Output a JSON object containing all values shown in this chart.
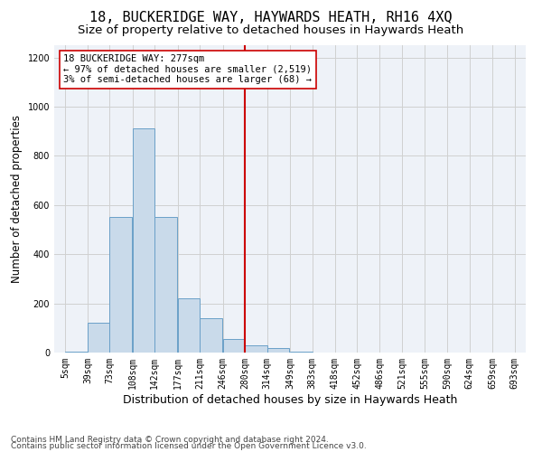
{
  "title": "18, BUCKERIDGE WAY, HAYWARDS HEATH, RH16 4XQ",
  "subtitle": "Size of property relative to detached houses in Haywards Heath",
  "xlabel": "Distribution of detached houses by size in Haywards Heath",
  "ylabel": "Number of detached properties",
  "footer1": "Contains HM Land Registry data © Crown copyright and database right 2024.",
  "footer2": "Contains public sector information licensed under the Open Government Licence v3.0.",
  "bin_edges": [
    5,
    39,
    73,
    108,
    142,
    177,
    211,
    246,
    280,
    314,
    349,
    383,
    418,
    452,
    486,
    521,
    555,
    590,
    624,
    659,
    693
  ],
  "bar_heights": [
    5,
    120,
    550,
    910,
    550,
    220,
    140,
    55,
    30,
    20,
    5,
    0,
    0,
    0,
    0,
    0,
    0,
    0,
    0,
    0
  ],
  "bar_color": "#c9daea",
  "bar_edgecolor": "#6aa0c8",
  "grid_color": "#d0d0d0",
  "bg_color": "#eef2f8",
  "vline_x": 280,
  "vline_color": "#cc0000",
  "annotation_line1": "18 BUCKERIDGE WAY: 277sqm",
  "annotation_line2": "← 97% of detached houses are smaller (2,519)",
  "annotation_line3": "3% of semi-detached houses are larger (68) →",
  "annotation_box_color": "#ffffff",
  "annotation_box_edgecolor": "#cc0000",
  "ylim": [
    0,
    1250
  ],
  "yticks": [
    0,
    200,
    400,
    600,
    800,
    1000,
    1200
  ],
  "title_fontsize": 11,
  "subtitle_fontsize": 9.5,
  "xlabel_fontsize": 9,
  "ylabel_fontsize": 8.5,
  "tick_fontsize": 7,
  "annotation_fontsize": 7.5,
  "footer_fontsize": 6.5
}
